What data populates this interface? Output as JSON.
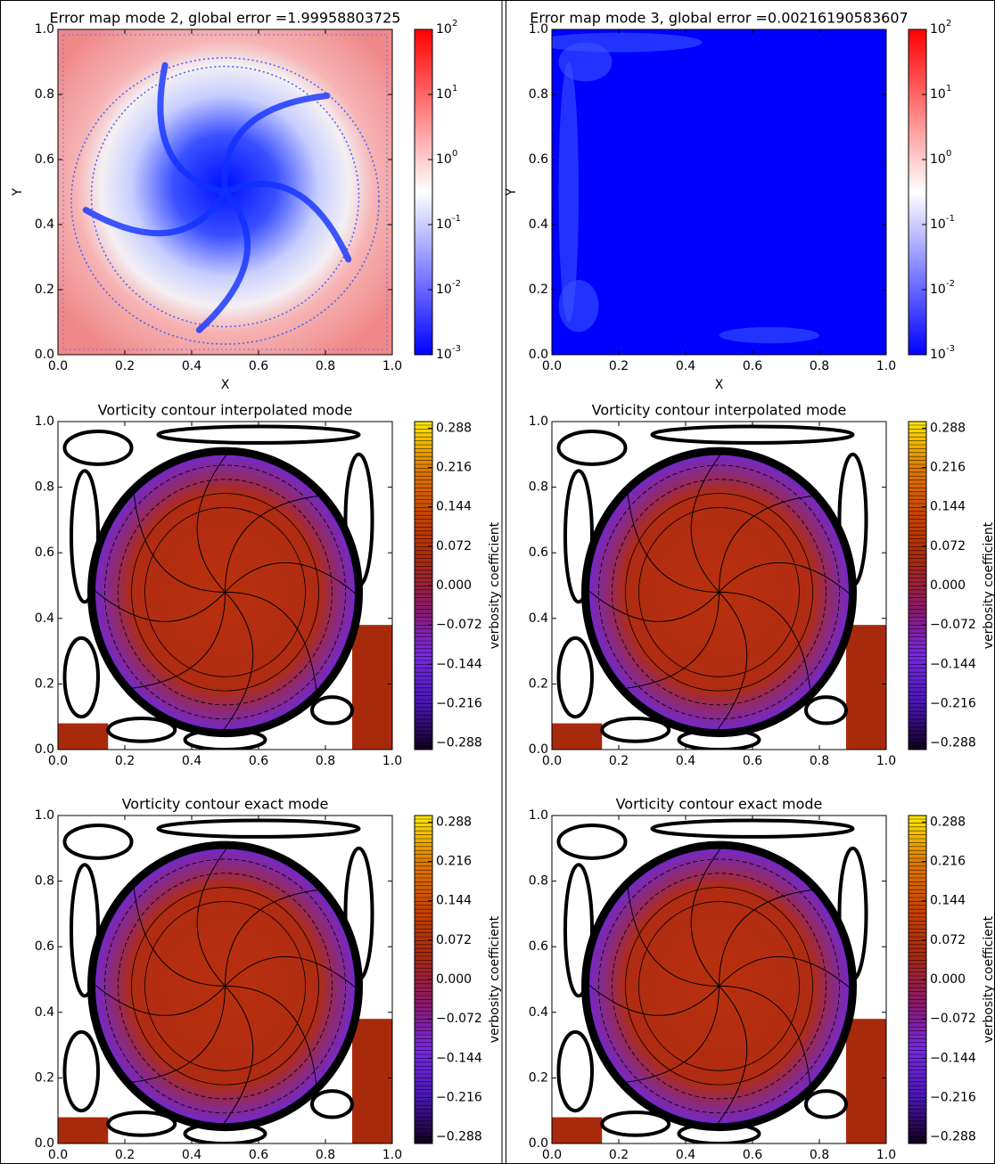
{
  "chart_data": [
    {
      "type": "heatmap",
      "title": "Error map mode 2, global error =1.99958803725",
      "xlabel": "X",
      "ylabel": "Y",
      "xlim": [
        0,
        1
      ],
      "ylim": [
        0,
        1
      ],
      "xticks": [
        {
          "value": 0,
          "label": "0.0"
        },
        0.2,
        0.4,
        0.6,
        0.8,
        {
          "value": 1,
          "label": "1.0"
        }
      ],
      "yticks": [
        {
          "value": 0,
          "label": "0.0"
        },
        0.2,
        0.4,
        0.6,
        0.8,
        {
          "value": 1,
          "label": "1.0"
        }
      ],
      "colorbar": {
        "scale": "log",
        "lim": [
          0.001,
          100
        ],
        "colors": [
          "#0000ff",
          "#ffffff",
          "#ff0000"
        ],
        "ticks": [
          {
            "value": 0.001,
            "label": "10",
            "exp": "-3"
          },
          {
            "value": 0.01,
            "label": "10",
            "exp": "-2"
          },
          {
            "value": 0.1,
            "label": "10",
            "exp": "-1"
          },
          {
            "value": 1,
            "label": "10",
            "exp": "0"
          },
          {
            "value": 10,
            "label": "10",
            "exp": "1"
          },
          {
            "value": 100,
            "label": "10",
            "exp": "2"
          }
        ]
      }
    },
    {
      "type": "heatmap",
      "title": "Error map mode 3, global error =0.00216190583607",
      "xlabel": "X",
      "ylabel": "Y",
      "xlim": [
        0,
        1
      ],
      "ylim": [
        0,
        1
      ],
      "xticks": [
        {
          "value": 0,
          "label": "0.0"
        },
        0.2,
        0.4,
        0.6,
        0.8,
        {
          "value": 1,
          "label": "1.0"
        }
      ],
      "yticks": [
        {
          "value": 0,
          "label": "0.0"
        },
        0.2,
        0.4,
        0.6,
        0.8,
        {
          "value": 1,
          "label": "1.0"
        }
      ],
      "colorbar": {
        "scale": "log",
        "lim": [
          0.001,
          100
        ],
        "colors": [
          "#0000ff",
          "#ffffff",
          "#ff0000"
        ],
        "ticks": [
          {
            "value": 0.001,
            "label": "10",
            "exp": "-3"
          },
          {
            "value": 0.01,
            "label": "10",
            "exp": "-2"
          },
          {
            "value": 0.1,
            "label": "10",
            "exp": "-1"
          },
          {
            "value": 1,
            "label": "10",
            "exp": "0"
          },
          {
            "value": 10,
            "label": "10",
            "exp": "1"
          },
          {
            "value": 100,
            "label": "10",
            "exp": "2"
          }
        ]
      }
    },
    {
      "type": "contour",
      "title": "Vorticity contour interpolated mode",
      "xlim": [
        0,
        1
      ],
      "ylim": [
        0,
        1
      ],
      "xticks": [
        {
          "value": 0,
          "label": "0.0"
        },
        0.2,
        0.4,
        0.6,
        0.8,
        {
          "value": 1,
          "label": "1.0"
        }
      ],
      "yticks": [
        {
          "value": 0,
          "label": "0.0"
        },
        0.2,
        0.4,
        0.6,
        0.8,
        {
          "value": 1,
          "label": "1.0"
        }
      ],
      "colorbar": {
        "scale": "linear",
        "lim": [
          -0.3,
          0.3
        ],
        "label": "verbosity coefficient",
        "colors": [
          "#100020",
          "#4a18b0",
          "#7a28e8",
          "#8a1a6a",
          "#a82810",
          "#c84400",
          "#e07a00",
          "#ffe800"
        ],
        "ticks": [
          {
            "value": -0.288,
            "label": "−0.288"
          },
          {
            "value": -0.216,
            "label": "−0.216"
          },
          {
            "value": -0.144,
            "label": "−0.144"
          },
          {
            "value": -0.072,
            "label": "−0.072"
          },
          {
            "value": 0,
            "label": "0.000"
          },
          0.072,
          0.144,
          0.216,
          0.288
        ]
      }
    },
    {
      "type": "contour",
      "title": "Vorticity contour interpolated mode",
      "xlim": [
        0,
        1
      ],
      "ylim": [
        0,
        1
      ],
      "xticks": [
        {
          "value": 0,
          "label": "0.0"
        },
        0.2,
        0.4,
        0.6,
        0.8,
        {
          "value": 1,
          "label": "1.0"
        }
      ],
      "yticks": [
        {
          "value": 0,
          "label": "0.0"
        },
        0.2,
        0.4,
        0.6,
        0.8,
        {
          "value": 1,
          "label": "1.0"
        }
      ],
      "colorbar": {
        "scale": "linear",
        "lim": [
          -0.3,
          0.3
        ],
        "label": "verbosity coefficient",
        "colors": [
          "#100020",
          "#4a18b0",
          "#7a28e8",
          "#8a1a6a",
          "#a82810",
          "#c84400",
          "#e07a00",
          "#ffe800"
        ],
        "ticks": [
          {
            "value": -0.288,
            "label": "−0.288"
          },
          {
            "value": -0.216,
            "label": "−0.216"
          },
          {
            "value": -0.144,
            "label": "−0.144"
          },
          {
            "value": -0.072,
            "label": "−0.072"
          },
          {
            "value": 0,
            "label": "0.000"
          },
          0.072,
          0.144,
          0.216,
          0.288
        ]
      }
    },
    {
      "type": "contour",
      "title": "Vorticity contour exact mode",
      "xlim": [
        0,
        1
      ],
      "ylim": [
        0,
        1
      ],
      "xticks": [
        {
          "value": 0,
          "label": "0.0"
        },
        0.2,
        0.4,
        0.6,
        0.8,
        {
          "value": 1,
          "label": "1.0"
        }
      ],
      "yticks": [
        {
          "value": 0,
          "label": "0.0"
        },
        0.2,
        0.4,
        0.6,
        0.8,
        {
          "value": 1,
          "label": "1.0"
        }
      ],
      "colorbar": {
        "scale": "linear",
        "lim": [
          -0.3,
          0.3
        ],
        "label": "verbosity coefficient",
        "colors": [
          "#100020",
          "#4a18b0",
          "#7a28e8",
          "#8a1a6a",
          "#a82810",
          "#c84400",
          "#e07a00",
          "#ffe800"
        ],
        "ticks": [
          {
            "value": -0.288,
            "label": "−0.288"
          },
          {
            "value": -0.216,
            "label": "−0.216"
          },
          {
            "value": -0.144,
            "label": "−0.144"
          },
          {
            "value": -0.072,
            "label": "−0.072"
          },
          {
            "value": 0,
            "label": "0.000"
          },
          0.072,
          0.144,
          0.216,
          0.288
        ]
      }
    },
    {
      "type": "contour",
      "title": "Vorticity contour exact mode",
      "xlim": [
        0,
        1
      ],
      "ylim": [
        0,
        1
      ],
      "xticks": [
        {
          "value": 0,
          "label": "0.0"
        },
        0.2,
        0.4,
        0.6,
        0.8,
        {
          "value": 1,
          "label": "1.0"
        }
      ],
      "yticks": [
        {
          "value": 0,
          "label": "0.0"
        },
        0.2,
        0.4,
        0.6,
        0.8,
        {
          "value": 1,
          "label": "1.0"
        }
      ],
      "colorbar": {
        "scale": "linear",
        "lim": [
          -0.3,
          0.3
        ],
        "label": "verbosity coefficient",
        "colors": [
          "#100020",
          "#4a18b0",
          "#7a28e8",
          "#8a1a6a",
          "#a82810",
          "#c84400",
          "#e07a00",
          "#ffe800"
        ],
        "ticks": [
          {
            "value": -0.288,
            "label": "−0.288"
          },
          {
            "value": -0.216,
            "label": "−0.216"
          },
          {
            "value": -0.144,
            "label": "−0.144"
          },
          {
            "value": -0.072,
            "label": "−0.072"
          },
          {
            "value": 0,
            "label": "0.000"
          },
          0.072,
          0.144,
          0.216,
          0.288
        ]
      }
    }
  ]
}
